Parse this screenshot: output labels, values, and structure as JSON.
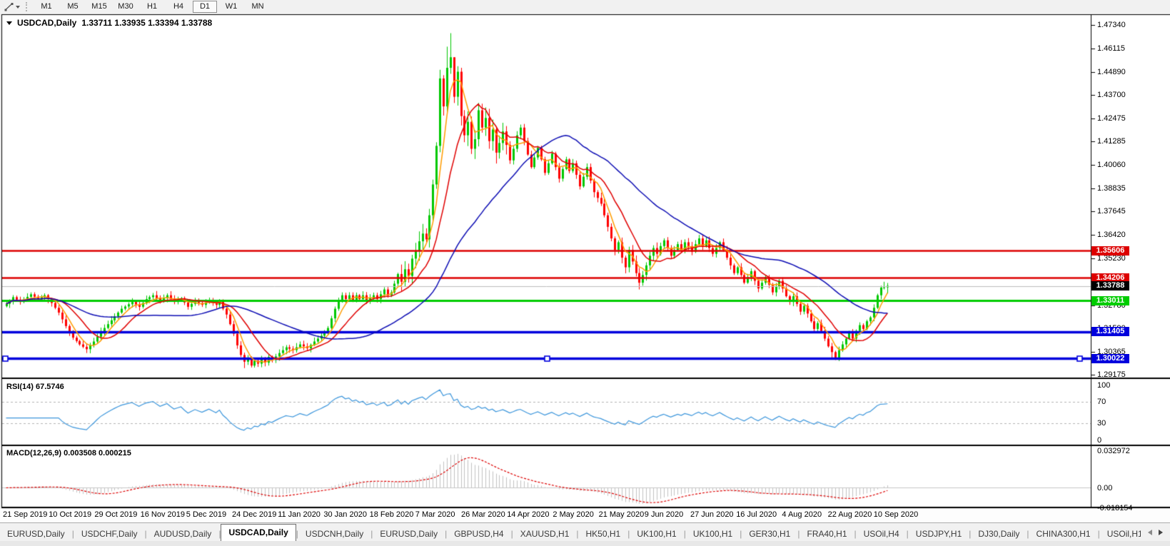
{
  "toolbar": {
    "tool_icon": "trendline-icon",
    "dropdown_icon": "caret-down-icon",
    "timeframes": [
      "M1",
      "M5",
      "M15",
      "M30",
      "H1",
      "H4",
      "D1",
      "W1",
      "MN"
    ],
    "active_timeframe": "D1"
  },
  "chart_header": {
    "collapse_icon": "triangle-down-icon",
    "symbol": "USDCAD,Daily",
    "ohlc": "1.33711 1.33935 1.33394 1.33788"
  },
  "price_axis": {
    "ticks": [
      {
        "label": "1.47340",
        "value": 1.4734
      },
      {
        "label": "1.46115",
        "value": 1.46115
      },
      {
        "label": "1.44890",
        "value": 1.4489
      },
      {
        "label": "1.43700",
        "value": 1.437
      },
      {
        "label": "1.42475",
        "value": 1.42475
      },
      {
        "label": "1.41285",
        "value": 1.41285
      },
      {
        "label": "1.40060",
        "value": 1.4006
      },
      {
        "label": "1.38835",
        "value": 1.38835
      },
      {
        "label": "1.37645",
        "value": 1.37645
      },
      {
        "label": "1.36420",
        "value": 1.3642
      },
      {
        "label": "1.35230",
        "value": 1.3523
      },
      {
        "label": "1.34040",
        "value": 1.3404
      },
      {
        "label": "1.32780",
        "value": 1.3278
      },
      {
        "label": "1.31590",
        "value": 1.3159
      },
      {
        "label": "1.30365",
        "value": 1.30365
      },
      {
        "label": "1.29175",
        "value": 1.29175
      }
    ],
    "tags": [
      {
        "label": "1.35606",
        "value": 1.35606,
        "bg": "#dd0000",
        "fg": "#ffffff"
      },
      {
        "label": "1.34206",
        "value": 1.34206,
        "bg": "#dd0000",
        "fg": "#ffffff"
      },
      {
        "label": "1.33788",
        "value": 1.33788,
        "bg": "#000000",
        "fg": "#ffffff"
      },
      {
        "label": "1.33011",
        "value": 1.33011,
        "bg": "#00cc00",
        "fg": "#ffffff"
      },
      {
        "label": "1.31405",
        "value": 1.31405,
        "bg": "#0000dd",
        "fg": "#ffffff"
      },
      {
        "label": "1.30022",
        "value": 1.30022,
        "bg": "#0000dd",
        "fg": "#ffffff"
      }
    ]
  },
  "rsi_panel": {
    "label": "RSI(14) 67.5746",
    "axis": [
      {
        "label": "100",
        "value": 100
      },
      {
        "label": "70",
        "value": 70
      },
      {
        "label": "30",
        "value": 30
      },
      {
        "label": "0",
        "value": 0
      }
    ],
    "dashed_levels": [
      70,
      30
    ],
    "line_color": "#3c96dc"
  },
  "macd_panel": {
    "label": "MACD(12,26,9) 0.003508 0.000215",
    "axis": [
      {
        "label": "0.032972",
        "value": 0.032972
      },
      {
        "label": "0.00",
        "value": 0
      },
      {
        "label": "-0.018154",
        "value": -0.018154
      }
    ],
    "histogram_color": "#c2c2c2",
    "signal_color": "#dd0000"
  },
  "date_axis": [
    "21 Sep 2019",
    "10 Oct 2019",
    "29 Oct 2019",
    "16 Nov 2019",
    "5 Dec 2019",
    "24 Dec 2019",
    "11 Jan 2020",
    "30 Jan 2020",
    "18 Feb 2020",
    "7 Mar 2020",
    "26 Mar 2020",
    "14 Apr 2020",
    "2 May 2020",
    "21 May 2020",
    "9 Jun 2020",
    "27 Jun 2020",
    "16 Jul 2020",
    "4 Aug 2020",
    "22 Aug 2020",
    "10 Sep 2020"
  ],
  "tab_bar": {
    "tabs": [
      "EURUSD,Daily",
      "USDCHF,Daily",
      "AUDUSD,Daily",
      "USDCAD,Daily",
      "USDCNH,Daily",
      "EURUSD,Daily",
      "GBPUSD,H4",
      "XAUUSD,H1",
      "HK50,H1",
      "UK100,H1",
      "UK100,H1",
      "GER30,H1",
      "FRA40,H1",
      "USOil,H4",
      "USDJPY,H1",
      "DJ30,Daily",
      "CHINA300,H1",
      "USOil,H1"
    ],
    "active_index": 3,
    "scroll_left_icon": "arrow-left-icon",
    "scroll_right_icon": "arrow-right-icon"
  },
  "chart_data": {
    "type": "candlestick",
    "symbol": "USDCAD",
    "timeframe": "Daily",
    "bars": 253,
    "ylim": [
      1.29175,
      1.4734
    ],
    "bull_color": "#00c800",
    "bear_color": "#ff0000",
    "last_bar": {
      "open": 1.33711,
      "high": 1.33935,
      "low": 1.33394,
      "close": 1.33788
    },
    "horizontal_lines": [
      {
        "price": 1.35606,
        "color": "#dd0000",
        "width": 2.5,
        "selected": false
      },
      {
        "price": 1.34206,
        "color": "#dd0000",
        "width": 2.5,
        "selected": false
      },
      {
        "price": 1.33788,
        "color": "#bdbdbd",
        "width": 1,
        "selected": false
      },
      {
        "price": 1.33011,
        "color": "#00cc00",
        "width": 3,
        "selected": false
      },
      {
        "price": 1.31405,
        "color": "#0000dd",
        "width": 3.5,
        "selected": false
      },
      {
        "price": 1.30022,
        "color": "#0000dd",
        "width": 3.5,
        "selected": true
      }
    ],
    "moving_averages": [
      {
        "period": 5,
        "color": "#ff9c00"
      },
      {
        "period": 12,
        "color": "#e00000"
      },
      {
        "period": 38,
        "color": "#0d0db4"
      }
    ],
    "rsi_period": 14,
    "rsi_last": 67.5746,
    "macd_params": [
      12,
      26,
      9
    ],
    "macd_last": 0.003508,
    "macd_signal_last": 0.000215,
    "close_keypoints": [
      [
        0,
        1.3285
      ],
      [
        2,
        1.332
      ],
      [
        4,
        1.3295
      ],
      [
        7,
        1.3335
      ],
      [
        9,
        1.331
      ],
      [
        11,
        1.333
      ],
      [
        13,
        1.329
      ],
      [
        15,
        1.324
      ],
      [
        17,
        1.317
      ],
      [
        19,
        1.311
      ],
      [
        21,
        1.3075
      ],
      [
        23,
        1.305
      ],
      [
        25,
        1.309
      ],
      [
        27,
        1.314
      ],
      [
        30,
        1.32
      ],
      [
        33,
        1.326
      ],
      [
        36,
        1.3295
      ],
      [
        38,
        1.327
      ],
      [
        40,
        1.331
      ],
      [
        42,
        1.333
      ],
      [
        44,
        1.33
      ],
      [
        46,
        1.333
      ],
      [
        48,
        1.3295
      ],
      [
        50,
        1.3315
      ],
      [
        52,
        1.327
      ],
      [
        54,
        1.33
      ],
      [
        56,
        1.328
      ],
      [
        58,
        1.3305
      ],
      [
        60,
        1.328
      ],
      [
        61,
        1.33
      ],
      [
        62,
        1.326
      ],
      [
        63,
        1.323
      ],
      [
        64,
        1.318
      ],
      [
        65,
        1.313
      ],
      [
        66,
        1.307
      ],
      [
        67,
        1.302
      ],
      [
        68,
        1.2985
      ],
      [
        69,
        1.3005
      ],
      [
        70,
        1.2965
      ],
      [
        71,
        1.299
      ],
      [
        72,
        1.2975
      ],
      [
        73,
        1.3
      ],
      [
        74,
        1.298
      ],
      [
        75,
        1.301
      ],
      [
        76,
        1.2995
      ],
      [
        78,
        1.303
      ],
      [
        80,
        1.306
      ],
      [
        82,
        1.3045
      ],
      [
        84,
        1.3075
      ],
      [
        86,
        1.3055
      ],
      [
        88,
        1.309
      ],
      [
        90,
        1.312
      ],
      [
        92,
        1.316
      ],
      [
        93,
        1.321
      ],
      [
        94,
        1.326
      ],
      [
        95,
        1.33
      ],
      [
        96,
        1.333
      ],
      [
        97,
        1.331
      ],
      [
        98,
        1.333
      ],
      [
        99,
        1.3305
      ],
      [
        100,
        1.333
      ],
      [
        101,
        1.331
      ],
      [
        102,
        1.333
      ],
      [
        103,
        1.33
      ],
      [
        104,
        1.3315
      ],
      [
        105,
        1.333
      ],
      [
        106,
        1.331
      ],
      [
        107,
        1.3335
      ],
      [
        108,
        1.336
      ],
      [
        109,
        1.333
      ],
      [
        110,
        1.3345
      ],
      [
        111,
        1.339
      ],
      [
        112,
        1.344
      ],
      [
        113,
        1.34
      ],
      [
        114,
        1.3465
      ],
      [
        115,
        1.343
      ],
      [
        116,
        1.352
      ],
      [
        117,
        1.356
      ],
      [
        118,
        1.361
      ],
      [
        119,
        1.365
      ],
      [
        120,
        1.362
      ],
      [
        121,
        1.3745
      ],
      [
        122,
        1.3905
      ],
      [
        123,
        1.4105
      ],
      [
        124,
        1.4455
      ],
      [
        125,
        1.431
      ],
      [
        126,
        1.451
      ],
      [
        127,
        1.4565
      ],
      [
        128,
        1.436
      ],
      [
        129,
        1.449
      ],
      [
        130,
        1.426
      ],
      [
        131,
        1.416
      ],
      [
        132,
        1.423
      ],
      [
        133,
        1.409
      ],
      [
        134,
        1.414
      ],
      [
        135,
        1.429
      ],
      [
        136,
        1.42
      ],
      [
        137,
        1.425
      ],
      [
        138,
        1.413
      ],
      [
        139,
        1.419
      ],
      [
        140,
        1.407
      ],
      [
        141,
        1.412
      ],
      [
        142,
        1.418
      ],
      [
        143,
        1.411
      ],
      [
        144,
        1.403
      ],
      [
        145,
        1.409
      ],
      [
        146,
        1.416
      ],
      [
        147,
        1.42
      ],
      [
        148,
        1.413
      ],
      [
        149,
        1.406
      ],
      [
        150,
        1.3995
      ],
      [
        151,
        1.4045
      ],
      [
        152,
        1.4095
      ],
      [
        153,
        1.4035
      ],
      [
        154,
        1.3965
      ],
      [
        155,
        1.4015
      ],
      [
        156,
        1.4065
      ],
      [
        157,
        1.3995
      ],
      [
        158,
        1.3935
      ],
      [
        159,
        1.3985
      ],
      [
        160,
        1.4035
      ],
      [
        161,
        1.3975
      ],
      [
        162,
        1.4015
      ],
      [
        163,
        1.3955
      ],
      [
        164,
        1.3895
      ],
      [
        165,
        1.3945
      ],
      [
        166,
        1.3995
      ],
      [
        167,
        1.3925
      ],
      [
        168,
        1.3865
      ],
      [
        170,
        1.3805
      ],
      [
        171,
        1.3745
      ],
      [
        172,
        1.3685
      ],
      [
        173,
        1.3625
      ],
      [
        174,
        1.3565
      ],
      [
        175,
        1.3605
      ],
      [
        176,
        1.3525
      ],
      [
        177,
        1.3475
      ],
      [
        178,
        1.3565
      ],
      [
        179,
        1.3505
      ],
      [
        180,
        1.3445
      ],
      [
        181,
        1.3395
      ],
      [
        182,
        1.3435
      ],
      [
        183,
        1.3485
      ],
      [
        184,
        1.3535
      ],
      [
        185,
        1.3575
      ],
      [
        186,
        1.3545
      ],
      [
        187,
        1.3585
      ],
      [
        188,
        1.3615
      ],
      [
        189,
        1.3575
      ],
      [
        190,
        1.3535
      ],
      [
        191,
        1.3565
      ],
      [
        192,
        1.3595
      ],
      [
        193,
        1.3565
      ],
      [
        194,
        1.3605
      ],
      [
        195,
        1.3585
      ],
      [
        196,
        1.3555
      ],
      [
        197,
        1.3595
      ],
      [
        198,
        1.3625
      ],
      [
        199,
        1.3585
      ],
      [
        200,
        1.3615
      ],
      [
        201,
        1.3575
      ],
      [
        202,
        1.3545
      ],
      [
        203,
        1.3575
      ],
      [
        204,
        1.3605
      ],
      [
        205,
        1.3565
      ],
      [
        206,
        1.3525
      ],
      [
        207,
        1.3485
      ],
      [
        208,
        1.3445
      ],
      [
        209,
        1.3475
      ],
      [
        210,
        1.3435
      ],
      [
        211,
        1.3395
      ],
      [
        212,
        1.3425
      ],
      [
        213,
        1.3455
      ],
      [
        214,
        1.3405
      ],
      [
        215,
        1.3365
      ],
      [
        216,
        1.3395
      ],
      [
        217,
        1.3425
      ],
      [
        218,
        1.3385
      ],
      [
        219,
        1.3345
      ],
      [
        220,
        1.3375
      ],
      [
        221,
        1.3405
      ],
      [
        222,
        1.3365
      ],
      [
        223,
        1.3325
      ],
      [
        224,
        1.3295
      ],
      [
        225,
        1.3325
      ],
      [
        226,
        1.3285
      ],
      [
        227,
        1.3245
      ],
      [
        228,
        1.3275
      ],
      [
        229,
        1.3235
      ],
      [
        230,
        1.3195
      ],
      [
        231,
        1.3155
      ],
      [
        232,
        1.3185
      ],
      [
        233,
        1.3145
      ],
      [
        234,
        1.3105
      ],
      [
        235,
        1.3065
      ],
      [
        236,
        1.3035
      ],
      [
        237,
        1.3005
      ],
      [
        238,
        1.3045
      ],
      [
        239,
        1.3075
      ],
      [
        240,
        1.3105
      ],
      [
        241,
        1.3135
      ],
      [
        242,
        1.3105
      ],
      [
        243,
        1.3145
      ],
      [
        244,
        1.3175
      ],
      [
        245,
        1.3155
      ],
      [
        246,
        1.3195
      ],
      [
        247,
        1.3215
      ],
      [
        248,
        1.3265
      ],
      [
        249,
        1.333
      ],
      [
        250,
        1.337
      ],
      [
        251,
        1.3371
      ],
      [
        252,
        1.33788
      ]
    ],
    "ohlc_overrides": {
      "7": {
        "h": 1.3345
      },
      "42": {
        "h": 1.3342
      },
      "46": {
        "h": 1.334
      },
      "68": {
        "l": 1.2952
      },
      "70": {
        "l": 1.2955
      },
      "72": {
        "l": 1.2958
      },
      "124": {
        "h": 1.45
      },
      "126": {
        "h": 1.462
      },
      "127": {
        "h": 1.469
      },
      "128": {
        "h": 1.454
      },
      "181": {
        "l": 1.336
      },
      "236": {
        "l": 1.2996
      },
      "237": {
        "l": 1.2994
      },
      "251": {
        "h": 1.34
      },
      "252": {
        "o": 1.33711,
        "h": 1.33935,
        "l": 1.33394,
        "c": 1.33788
      }
    }
  }
}
